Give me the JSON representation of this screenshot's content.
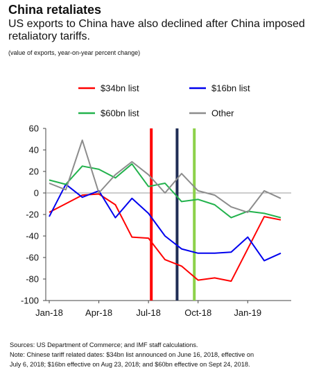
{
  "header": {
    "title": "China retaliates",
    "subtitle": "US exports to China have also declined after China imposed retaliatory tariffs.",
    "note": "(value of exports, year-on-year percent change)"
  },
  "footer": {
    "sources": "Sources: US Department of Commerce; and IMF staff calculations.",
    "note_line1": "Note: Chinese tariff related dates: $34bn list announced on June 16, 2018, effective on",
    "note_line2": "July 6, 2018; $16bn effective on Aug 23, 2018; and $60bn effective on Sept 24, 2018."
  },
  "chart_data": {
    "type": "line",
    "x": [
      "2018-01",
      "2018-02",
      "2018-03",
      "2018-04",
      "2018-05",
      "2018-06",
      "2018-07",
      "2018-08",
      "2018-09",
      "2018-10",
      "2018-11",
      "2018-12",
      "2019-01",
      "2019-02",
      "2019-03"
    ],
    "x_tick_labels": [
      "Jan-18",
      "Apr-18",
      "Jul-18",
      "Oct-18",
      "Jan-19"
    ],
    "x_tick_positions": [
      "2018-01",
      "2018-04",
      "2018-07",
      "2018-10",
      "2019-01"
    ],
    "ylim": [
      -100,
      60
    ],
    "y_ticks": [
      -100,
      -80,
      -60,
      -40,
      -20,
      0,
      20,
      40,
      60
    ],
    "xlabel": "",
    "ylabel": "",
    "legend_position": "top",
    "grid": false,
    "series": [
      {
        "name": "$34bn list",
        "color": "#ff0000",
        "values": [
          -18,
          -10,
          -2,
          -1,
          -11,
          -41,
          -42,
          -62,
          -68,
          -81,
          -79,
          -82,
          -52,
          -22,
          -25
        ]
      },
      {
        "name": "$16bn list",
        "color": "#0000ee",
        "values": [
          -22,
          8,
          -4,
          2,
          -23,
          -5,
          -19,
          -40,
          -52,
          -56,
          -56,
          -55,
          -41,
          -63,
          -56
        ]
      },
      {
        "name": "$60bn list",
        "color": "#22b24c",
        "values": [
          12,
          8,
          25,
          22,
          14,
          27,
          6,
          9,
          -8,
          -6,
          -11,
          -23,
          -17,
          -19,
          -23
        ]
      },
      {
        "name": "Other",
        "color": "#8c8c8c",
        "values": [
          9,
          3,
          49,
          0,
          17,
          29,
          17,
          0,
          18,
          2,
          -2,
          -13,
          -18,
          2,
          -5
        ]
      }
    ],
    "event_lines": [
      {
        "date": "2018-07-06",
        "x": 6.17,
        "color": "#ff0000"
      },
      {
        "date": "2018-08-23",
        "x": 7.73,
        "color": "#1f2d55"
      },
      {
        "date": "2018-09-24",
        "x": 8.77,
        "color": "#8dd14a"
      }
    ]
  }
}
